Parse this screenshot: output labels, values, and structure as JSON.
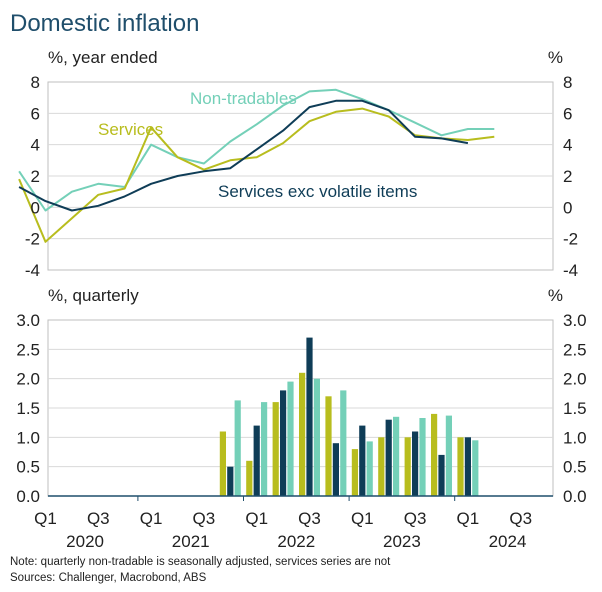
{
  "title": "Domestic inflation",
  "notes": {
    "note": "Note: quarterly non-tradable is seasonally adjusted, services series are not",
    "sources": "Sources: Challenger, Macrobond, ABS"
  },
  "colors": {
    "services": "#b8bd1e",
    "services_exc": "#0f3d57",
    "non_tradables": "#74d0b8",
    "grid": "#d9d9d9",
    "axis": "#1f4e6b"
  },
  "x_axis": {
    "quarter_labels": [
      "Q1",
      "Q3",
      "Q1",
      "Q3",
      "Q1",
      "Q3",
      "Q1",
      "Q3",
      "Q1",
      "Q3"
    ],
    "quarter_label_dates": [
      "2020-Q1",
      "2020-Q3",
      "2021-Q1",
      "2021-Q3",
      "2022-Q1",
      "2022-Q3",
      "2023-Q1",
      "2023-Q3",
      "2024-Q1",
      "2024-Q3"
    ],
    "years": [
      "2020",
      "2021",
      "2022",
      "2023",
      "2024"
    ]
  },
  "chart_data": [
    {
      "type": "line",
      "unit_left": "%, year ended",
      "unit_right": "%",
      "ylim": [
        -4,
        8
      ],
      "yticks": [
        -4,
        -2,
        0,
        2,
        4,
        6,
        8
      ],
      "x": [
        "2019-Q4",
        "2020-Q1",
        "2020-Q2",
        "2020-Q3",
        "2020-Q4",
        "2021-Q1",
        "2021-Q2",
        "2021-Q3",
        "2021-Q4",
        "2022-Q1",
        "2022-Q2",
        "2022-Q3",
        "2022-Q4",
        "2023-Q1",
        "2023-Q2",
        "2023-Q3",
        "2023-Q4",
        "2024-Q1",
        "2024-Q2",
        "2024-Q3"
      ],
      "series": [
        {
          "name": "Non-tradables",
          "key": "non_tradables",
          "values": [
            2.3,
            -0.2,
            1.0,
            1.5,
            1.3,
            4.0,
            3.2,
            2.8,
            4.2,
            5.3,
            6.5,
            7.4,
            7.5,
            6.9,
            6.2,
            5.4,
            4.6,
            5.0,
            5.0,
            null
          ]
        },
        {
          "name": "Services",
          "key": "services",
          "values": [
            1.8,
            -2.2,
            -0.7,
            0.8,
            1.2,
            5.1,
            3.2,
            2.4,
            3.0,
            3.2,
            4.1,
            5.5,
            6.1,
            6.3,
            5.8,
            4.6,
            4.4,
            4.3,
            4.5,
            null
          ]
        },
        {
          "name": "Services exc volatile items",
          "key": "services_exc",
          "values": [
            1.3,
            0.4,
            -0.2,
            0.1,
            0.7,
            1.5,
            2.0,
            2.3,
            2.5,
            3.7,
            4.9,
            6.4,
            6.8,
            6.8,
            6.2,
            4.5,
            4.4,
            4.1,
            null,
            null
          ]
        }
      ],
      "labels": {
        "non_tradables": "Non-tradables",
        "services": "Services",
        "services_exc": "Services exc volatile items"
      }
    },
    {
      "type": "bar",
      "unit_left": "%, quarterly",
      "unit_right": "%",
      "ylim": [
        0,
        3.0
      ],
      "yticks": [
        "0.0",
        "0.5",
        "1.0",
        "1.5",
        "2.0",
        "2.5",
        "3.0"
      ],
      "categories": [
        "2021-Q4",
        "2022-Q1",
        "2022-Q2",
        "2022-Q3",
        "2022-Q4",
        "2023-Q1",
        "2023-Q2",
        "2023-Q3",
        "2023-Q4",
        "2024-Q1",
        "2024-Q2",
        "2024-Q3"
      ],
      "series": [
        {
          "key": "services",
          "values": [
            1.1,
            0.6,
            1.6,
            2.1,
            1.7,
            0.8,
            1.0,
            1.0,
            1.4,
            1.0,
            null,
            null
          ]
        },
        {
          "key": "services_exc",
          "values": [
            0.5,
            1.2,
            1.8,
            2.7,
            0.9,
            1.2,
            1.3,
            1.1,
            0.7,
            1.0,
            null,
            null
          ]
        },
        {
          "key": "non_tradables",
          "values": [
            1.63,
            1.6,
            1.95,
            2.0,
            1.8,
            0.93,
            1.35,
            1.33,
            1.37,
            0.95,
            null,
            null
          ]
        }
      ]
    }
  ]
}
